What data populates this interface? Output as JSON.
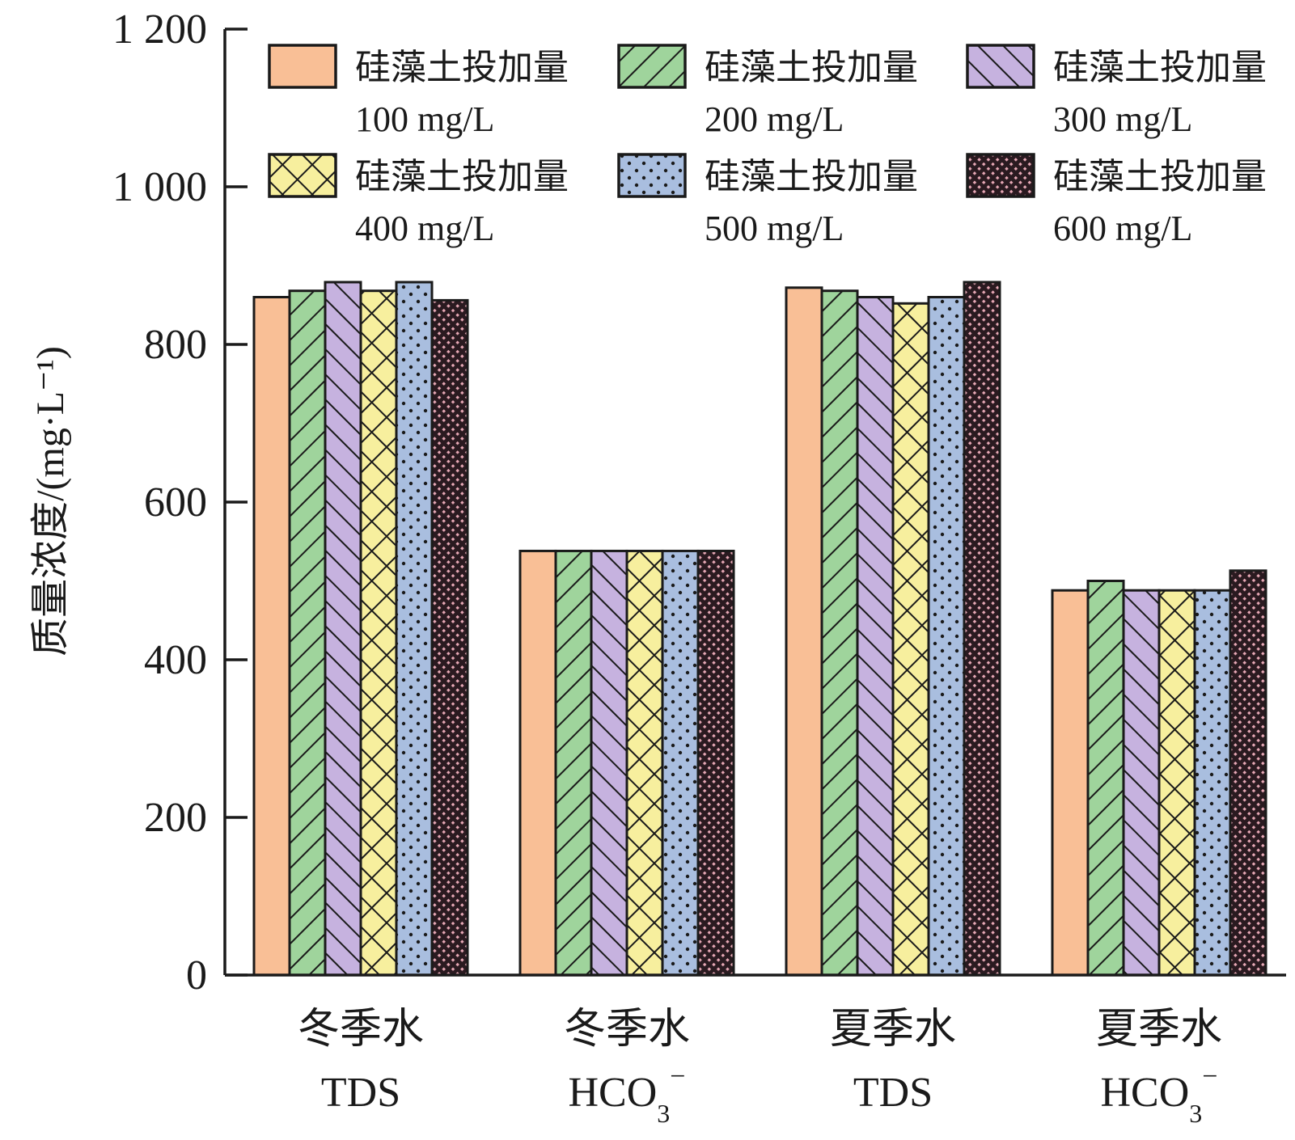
{
  "chart_data": {
    "type": "bar",
    "ylabel": "质量浓度/(mg·L⁻¹)",
    "ylim": [
      0,
      1200
    ],
    "yticks": [
      "0",
      "200",
      "400",
      "600",
      "800",
      "1 000",
      "1 200"
    ],
    "categories": [
      {
        "line1": "冬季水",
        "line2": "TDS",
        "sub": "",
        "sup": ""
      },
      {
        "line1": "冬季水",
        "line2": "HCO",
        "sub": "3",
        "sup": "−"
      },
      {
        "line1": "夏季水",
        "line2": "TDS",
        "sub": "",
        "sup": ""
      },
      {
        "line1": "夏季水",
        "line2": "HCO",
        "sub": "3",
        "sup": "−"
      }
    ],
    "series": [
      {
        "name": "硅藻土投加量",
        "dose": "100 mg/L",
        "color": "#f9bf96",
        "pattern": "solid",
        "values": [
          860,
          538,
          872,
          488
        ]
      },
      {
        "name": "硅藻土投加量",
        "dose": "200 mg/L",
        "color": "#9fd49c",
        "pattern": "hatch-forward",
        "values": [
          868,
          538,
          868,
          500
        ]
      },
      {
        "name": "硅藻土投加量",
        "dose": "300 mg/L",
        "color": "#c6b2df",
        "pattern": "hatch-back",
        "values": [
          879,
          538,
          860,
          488
        ]
      },
      {
        "name": "硅藻土投加量",
        "dose": "400 mg/L",
        "color": "#f7ef9e",
        "pattern": "crosshatch",
        "values": [
          868,
          538,
          852,
          488
        ]
      },
      {
        "name": "硅藻土投加量",
        "dose": "500 mg/L",
        "color": "#a9bedf",
        "pattern": "dots",
        "values": [
          879,
          538,
          860,
          488
        ]
      },
      {
        "name": "硅藻土投加量",
        "dose": "600 mg/L",
        "color": "#e8a9b6",
        "pattern": "dense-cross",
        "values": [
          856,
          538,
          879,
          513
        ]
      }
    ],
    "legend_position": "top",
    "grid": false
  }
}
